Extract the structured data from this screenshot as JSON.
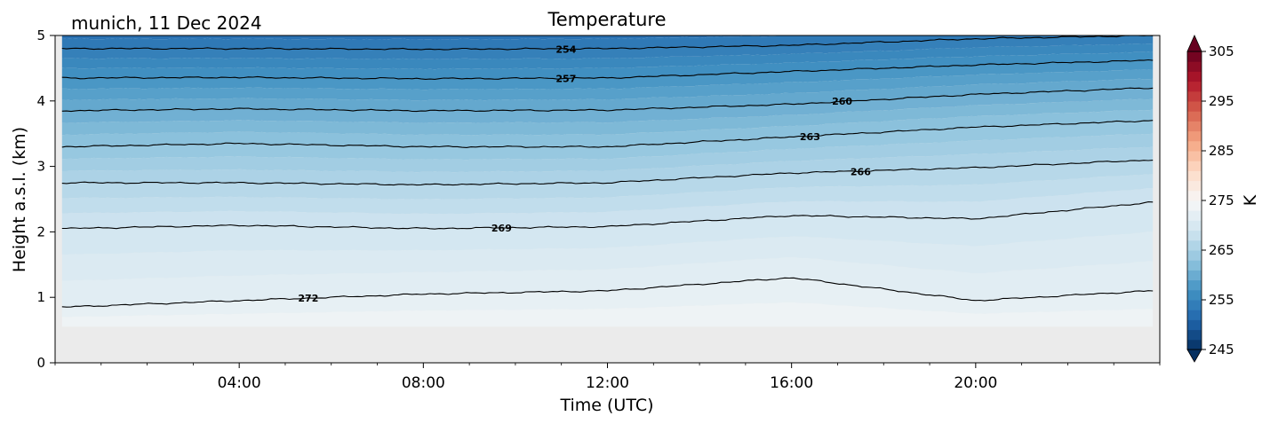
{
  "chart_data": {
    "type": "heatmap",
    "title": "Temperature",
    "subtitle": "munich, 11 Dec 2024",
    "xlabel": "Time (UTC)",
    "ylabel": "Height a.s.l. (km)",
    "xlim": [
      0,
      24
    ],
    "ylim": [
      0,
      5
    ],
    "x_ticks": [
      4,
      8,
      12,
      16,
      20
    ],
    "x_tick_labels": [
      "04:00",
      "08:00",
      "12:00",
      "16:00",
      "20:00"
    ],
    "y_ticks": [
      0,
      1,
      2,
      3,
      4,
      5
    ],
    "y_tick_labels": [
      "0",
      "1",
      "2",
      "3",
      "4",
      "5"
    ],
    "colorbar": {
      "label": "K",
      "range": [
        245,
        305
      ],
      "ticks": [
        245,
        255,
        265,
        275,
        285,
        295,
        305
      ],
      "tick_labels": [
        "245",
        "255",
        "265",
        "275",
        "285",
        "295",
        "305"
      ],
      "colormap": "RdBu_r",
      "extend": "both"
    },
    "data_start_height_km": 0.55,
    "contours": [
      {
        "level": 254,
        "label": "254",
        "label_x": 11.1,
        "heights": [
          [
            0.15,
            4.8
          ],
          [
            4,
            4.8
          ],
          [
            8,
            4.79
          ],
          [
            12,
            4.8
          ],
          [
            16,
            4.85
          ],
          [
            20,
            4.95
          ],
          [
            23.8,
            5.0
          ]
        ]
      },
      {
        "level": 257,
        "label": "257",
        "label_x": 11.1,
        "heights": [
          [
            0.15,
            4.35
          ],
          [
            4,
            4.36
          ],
          [
            8,
            4.34
          ],
          [
            12,
            4.35
          ],
          [
            16,
            4.45
          ],
          [
            20,
            4.55
          ],
          [
            23.8,
            4.62
          ]
        ]
      },
      {
        "level": 260,
        "label": "260",
        "label_x": 17.1,
        "heights": [
          [
            0.15,
            3.85
          ],
          [
            4,
            3.88
          ],
          [
            8,
            3.85
          ],
          [
            12,
            3.86
          ],
          [
            16,
            3.95
          ],
          [
            20,
            4.1
          ],
          [
            23.8,
            4.2
          ]
        ]
      },
      {
        "level": 263,
        "label": "263",
        "label_x": 16.4,
        "heights": [
          [
            0.15,
            3.3
          ],
          [
            4,
            3.35
          ],
          [
            8,
            3.3
          ],
          [
            12,
            3.3
          ],
          [
            16,
            3.45
          ],
          [
            20,
            3.6
          ],
          [
            23.8,
            3.7
          ]
        ]
      },
      {
        "level": 266,
        "label": "266",
        "label_x": 17.5,
        "heights": [
          [
            0.15,
            2.75
          ],
          [
            4,
            2.75
          ],
          [
            8,
            2.72
          ],
          [
            12,
            2.75
          ],
          [
            16,
            2.9
          ],
          [
            20,
            2.98
          ],
          [
            23.8,
            3.1
          ]
        ]
      },
      {
        "level": 269,
        "label": "269",
        "label_x": 9.7,
        "heights": [
          [
            0.15,
            2.05
          ],
          [
            4,
            2.1
          ],
          [
            8,
            2.05
          ],
          [
            12,
            2.08
          ],
          [
            16,
            2.25
          ],
          [
            20,
            2.2
          ],
          [
            23.8,
            2.45
          ]
        ]
      },
      {
        "level": 272,
        "label": "272",
        "label_x": 5.5,
        "heights": [
          [
            0.15,
            0.85
          ],
          [
            4,
            0.95
          ],
          [
            8,
            1.05
          ],
          [
            12,
            1.1
          ],
          [
            16,
            1.3
          ],
          [
            20,
            0.95
          ],
          [
            23.8,
            1.1
          ]
        ]
      }
    ]
  }
}
